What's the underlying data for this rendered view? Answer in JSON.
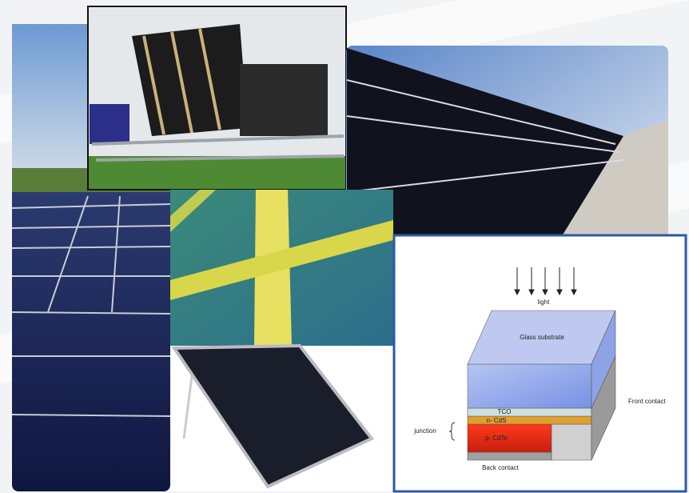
{
  "diagram": {
    "labels": {
      "light": "light",
      "glass": "Glass substrate",
      "tco": "TCO",
      "front_contact": "Front contact",
      "cds": "n- CdS",
      "cdte": "p- CdTe",
      "junction": "junction",
      "back_contact": "Back contact"
    }
  }
}
